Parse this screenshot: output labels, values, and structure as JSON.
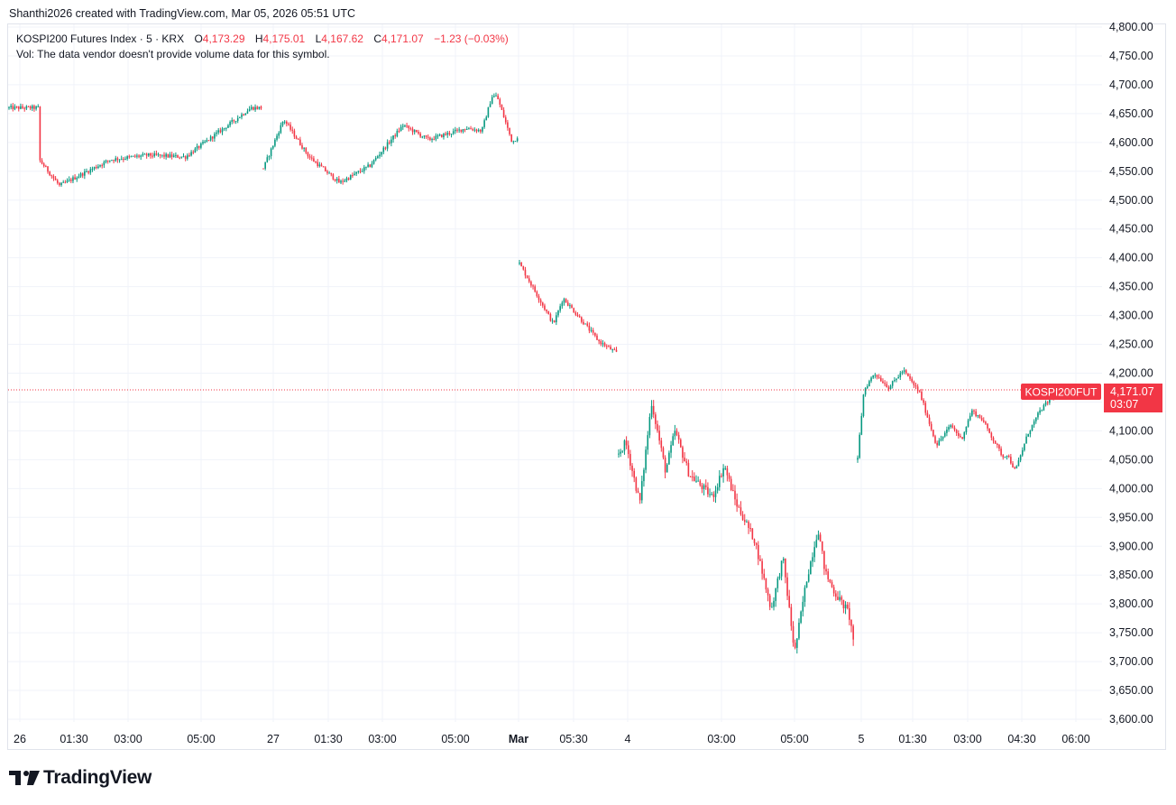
{
  "header": {
    "credit": "Shanthi2026 created with TradingView.com, Mar 05, 2026 05:51 UTC"
  },
  "legend": {
    "symbol": "KOSPI200 Futures Index · 5 · KRX",
    "open_label": "O",
    "open": "4,173.29",
    "high_label": "H",
    "high": "4,175.01",
    "low_label": "L",
    "low": "4,167.62",
    "close_label": "C",
    "close": "4,171.07",
    "change": "−1.23 (−0.03%)",
    "volume_note": "Vol: The data vendor doesn't provide volume data for this symbol."
  },
  "price_marker": {
    "symbol_tag": "KOSPI200FUT",
    "price": "4,171.07",
    "countdown": "03:07"
  },
  "footer": {
    "brand": "TradingView"
  },
  "colors": {
    "up": "#089981",
    "down": "#f23645",
    "grid": "#f0f3fa",
    "text": "#131722"
  },
  "chart_data": {
    "type": "candlestick",
    "title": "KOSPI200 Futures Index · 5 · KRX",
    "ylim": [
      3600,
      4800
    ],
    "y_ticks": [
      "4,800.00",
      "4,750.00",
      "4,700.00",
      "4,650.00",
      "4,600.00",
      "4,550.00",
      "4,500.00",
      "4,450.00",
      "4,400.00",
      "4,350.00",
      "4,300.00",
      "4,250.00",
      "4,200.00",
      "4,150.00",
      "4,100.00",
      "4,050.00",
      "4,000.00",
      "3,950.00",
      "3,900.00",
      "3,850.00",
      "3,800.00",
      "3,750.00",
      "3,700.00",
      "3,650.00",
      "3,600.00"
    ],
    "x_ticks": [
      "26",
      "01:30",
      "03:00",
      "05:00",
      "27",
      "01:30",
      "03:00",
      "05:00",
      "Mar",
      "05:30",
      "4",
      "03:00",
      "05:00",
      "5",
      "01:30",
      "03:00",
      "04:30",
      "06:00"
    ],
    "x_tick_bold": [
      false,
      false,
      false,
      false,
      false,
      false,
      false,
      false,
      true,
      false,
      false,
      false,
      false,
      false,
      false,
      false,
      false,
      false
    ],
    "last_price": 4171.07,
    "sessions": [
      {
        "day": "26",
        "path": [
          [
            4485,
            1
          ],
          [
            4570,
            0.12
          ],
          [
            4525,
            0.2
          ],
          [
            4570,
            0.4
          ],
          [
            4578,
            0.55
          ],
          [
            4575,
            0.7
          ],
          [
            4660,
            0.96
          ],
          [
            4660,
            1.0
          ]
        ]
      },
      {
        "day": "27",
        "path": [
          [
            4555,
            0
          ],
          [
            4640,
            0.08
          ],
          [
            4575,
            0.18
          ],
          [
            4530,
            0.3
          ],
          [
            4560,
            0.42
          ],
          [
            4630,
            0.55
          ],
          [
            4605,
            0.65
          ],
          [
            4625,
            0.8
          ],
          [
            4620,
            0.86
          ],
          [
            4680,
            0.9
          ],
          [
            4680,
            0.92
          ],
          [
            4600,
            0.98
          ],
          [
            4610,
            1.0
          ]
        ]
      },
      {
        "day": "Mar 3",
        "path": [
          [
            4390,
            0
          ],
          [
            4345,
            0.15
          ],
          [
            4285,
            0.35
          ],
          [
            4330,
            0.45
          ],
          [
            4300,
            0.6
          ],
          [
            4255,
            0.82
          ],
          [
            4235,
            1.0
          ]
        ]
      },
      {
        "day": "4",
        "path": [
          [
            4060,
            0
          ],
          [
            4080,
            0.03
          ],
          [
            3975,
            0.09
          ],
          [
            4150,
            0.14
          ],
          [
            4030,
            0.2
          ],
          [
            4100,
            0.24
          ],
          [
            4025,
            0.3
          ],
          [
            3985,
            0.4
          ],
          [
            4040,
            0.45
          ],
          [
            3975,
            0.5
          ],
          [
            3910,
            0.58
          ],
          [
            3790,
            0.65
          ],
          [
            3880,
            0.7
          ],
          [
            3715,
            0.75
          ],
          [
            3840,
            0.8
          ],
          [
            3930,
            0.85
          ],
          [
            3855,
            0.88
          ],
          [
            3820,
            0.92
          ],
          [
            3785,
            0.98
          ],
          [
            3740,
            1.0
          ]
        ]
      },
      {
        "day": "5",
        "path": [
          [
            4050,
            0
          ],
          [
            4075,
            0.005
          ],
          [
            4170,
            0.03
          ],
          [
            4200,
            0.08
          ],
          [
            4175,
            0.15
          ],
          [
            4205,
            0.22
          ],
          [
            4165,
            0.3
          ],
          [
            4075,
            0.38
          ],
          [
            4110,
            0.45
          ],
          [
            4085,
            0.5
          ],
          [
            4135,
            0.55
          ],
          [
            4120,
            0.6
          ],
          [
            4055,
            0.7
          ],
          [
            4060,
            0.72
          ],
          [
            4030,
            0.76
          ],
          [
            4095,
            0.82
          ],
          [
            4135,
            0.88
          ],
          [
            4160,
            0.94
          ],
          [
            4172,
            1.0
          ]
        ]
      }
    ]
  }
}
